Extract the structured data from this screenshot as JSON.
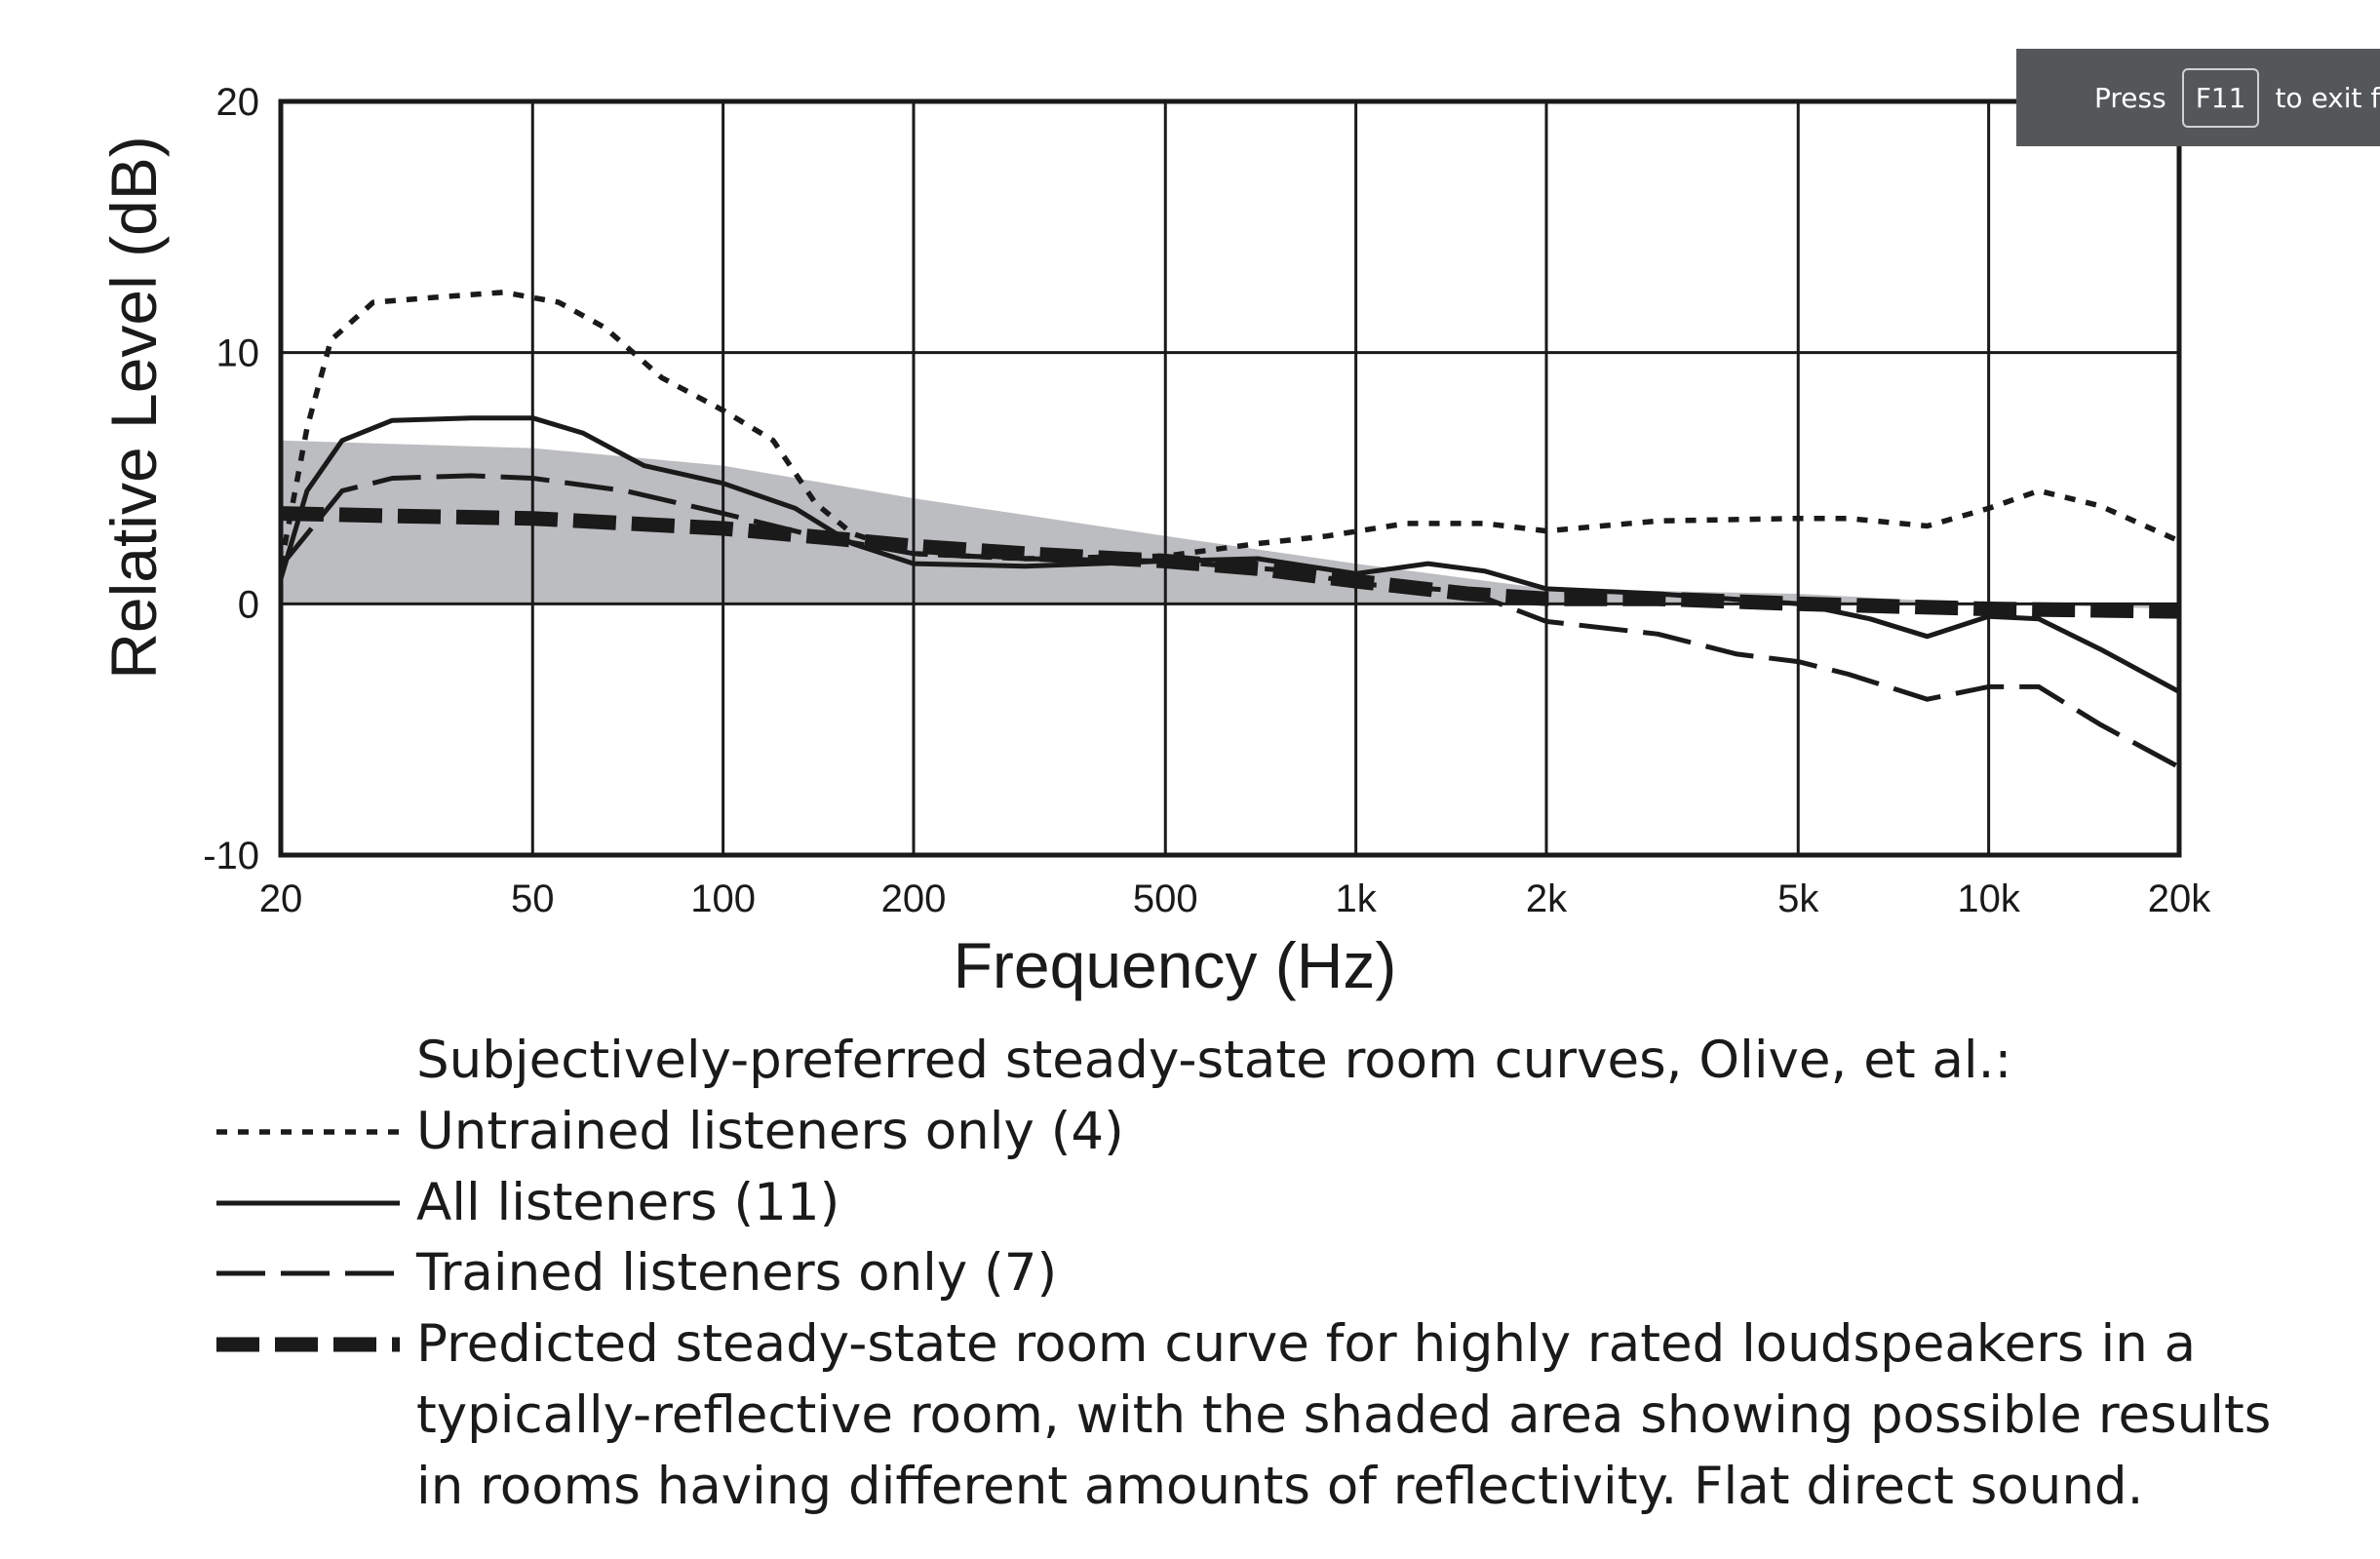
{
  "chart_data": {
    "type": "line",
    "xlabel": "Frequency (Hz)",
    "ylabel": "Relative Level (dB)",
    "x_scale": "log",
    "xlim": [
      20,
      20000
    ],
    "ylim": [
      -10,
      20
    ],
    "grid": true,
    "x_ticks": [
      {
        "value": 20,
        "label": "20"
      },
      {
        "value": 50,
        "label": "50"
      },
      {
        "value": 100,
        "label": "100"
      },
      {
        "value": 200,
        "label": "200"
      },
      {
        "value": 500,
        "label": "500"
      },
      {
        "value": 1000,
        "label": "1k"
      },
      {
        "value": 2000,
        "label": "2k"
      },
      {
        "value": 5000,
        "label": "5k"
      },
      {
        "value": 10000,
        "label": "10k"
      },
      {
        "value": 20000,
        "label": "20k"
      }
    ],
    "y_ticks": [
      {
        "value": 20,
        "label": "20"
      },
      {
        "value": 10,
        "label": "10"
      },
      {
        "value": 0,
        "label": "0"
      },
      {
        "value": -10,
        "label": "-10"
      }
    ],
    "shaded_area": {
      "color": "#bcbdc0",
      "lower": [
        [
          20,
          0
        ],
        [
          20000,
          0
        ]
      ],
      "upper": [
        [
          20,
          6.5
        ],
        [
          50,
          6.2
        ],
        [
          100,
          5.5
        ],
        [
          200,
          4.2
        ],
        [
          500,
          2.7
        ],
        [
          1000,
          1.6
        ],
        [
          2000,
          0.6
        ],
        [
          5000,
          0.4
        ],
        [
          10000,
          0.0
        ],
        [
          20000,
          -0.2
        ]
      ]
    },
    "series": [
      {
        "style": "dotted",
        "points": [
          [
            20,
            1.5
          ],
          [
            22,
            7
          ],
          [
            24,
            10.5
          ],
          [
            28,
            12
          ],
          [
            35,
            12.2
          ],
          [
            45,
            12.4
          ],
          [
            55,
            12
          ],
          [
            65,
            11
          ],
          [
            80,
            9
          ],
          [
            100,
            7.7
          ],
          [
            120,
            6.5
          ],
          [
            140,
            4
          ],
          [
            160,
            2.8
          ],
          [
            200,
            2.0
          ],
          [
            300,
            1.8
          ],
          [
            500,
            1.9
          ],
          [
            700,
            2.4
          ],
          [
            900,
            2.7
          ],
          [
            1200,
            3.2
          ],
          [
            1600,
            3.2
          ],
          [
            2000,
            2.9
          ],
          [
            3000,
            3.3
          ],
          [
            5000,
            3.4
          ],
          [
            6000,
            3.4
          ],
          [
            8000,
            3.1
          ],
          [
            10000,
            3.8
          ],
          [
            12000,
            4.5
          ],
          [
            15000,
            3.9
          ],
          [
            20000,
            2.5
          ]
        ]
      },
      {
        "style": "solid",
        "points": [
          [
            20,
            1.0
          ],
          [
            22,
            4.5
          ],
          [
            25,
            6.5
          ],
          [
            30,
            7.3
          ],
          [
            40,
            7.4
          ],
          [
            50,
            7.4
          ],
          [
            60,
            6.8
          ],
          [
            75,
            5.5
          ],
          [
            100,
            4.8
          ],
          [
            130,
            3.8
          ],
          [
            160,
            2.4
          ],
          [
            200,
            1.6
          ],
          [
            300,
            1.5
          ],
          [
            500,
            1.7
          ],
          [
            700,
            1.8
          ],
          [
            1000,
            1.2
          ],
          [
            1300,
            1.6
          ],
          [
            1600,
            1.3
          ],
          [
            2000,
            0.6
          ],
          [
            3000,
            0.4
          ],
          [
            5000,
            0.0
          ],
          [
            6500,
            -0.6
          ],
          [
            8000,
            -1.3
          ],
          [
            10000,
            -0.5
          ],
          [
            12000,
            -0.6
          ],
          [
            15000,
            -1.8
          ],
          [
            20000,
            -3.5
          ]
        ]
      },
      {
        "style": "long-dash",
        "points": [
          [
            20,
            1.5
          ],
          [
            25,
            4.5
          ],
          [
            30,
            5.0
          ],
          [
            40,
            5.1
          ],
          [
            50,
            5.0
          ],
          [
            70,
            4.5
          ],
          [
            100,
            3.6
          ],
          [
            140,
            2.7
          ],
          [
            200,
            2.0
          ],
          [
            300,
            1.8
          ],
          [
            500,
            1.7
          ],
          [
            800,
            1.3
          ],
          [
            1000,
            0.8
          ],
          [
            1500,
            0.5
          ],
          [
            2000,
            -0.7
          ],
          [
            3000,
            -1.2
          ],
          [
            4000,
            -2.0
          ],
          [
            5000,
            -2.3
          ],
          [
            6000,
            -2.8
          ],
          [
            8000,
            -3.8
          ],
          [
            10000,
            -3.3
          ],
          [
            12000,
            -3.3
          ],
          [
            15000,
            -4.8
          ],
          [
            20000,
            -6.5
          ]
        ]
      },
      {
        "style": "bold-dash",
        "points": [
          [
            20,
            3.6
          ],
          [
            30,
            3.5
          ],
          [
            50,
            3.4
          ],
          [
            100,
            3.0
          ],
          [
            150,
            2.6
          ],
          [
            200,
            2.3
          ],
          [
            300,
            2.0
          ],
          [
            500,
            1.7
          ],
          [
            700,
            1.4
          ],
          [
            1000,
            0.9
          ],
          [
            1500,
            0.4
          ],
          [
            2000,
            0.2
          ],
          [
            3000,
            0.2
          ],
          [
            5000,
            0.0
          ],
          [
            10000,
            -0.2
          ],
          [
            20000,
            -0.3
          ]
        ]
      }
    ],
    "legend": {
      "placement": "below",
      "title": "Subjectively-preferred steady-state room curves, Olive, et al.:",
      "entries": [
        {
          "style": "dotted",
          "label": "Untrained listeners only (4)"
        },
        {
          "style": "solid",
          "label": "All listeners (11)"
        },
        {
          "style": "long-dash",
          "label": "Trained listeners only (7)"
        },
        {
          "style": "bold-dash",
          "label": "Predicted steady-state room curve for highly rated loudspeakers in a",
          "continuation": [
            "typically-reflective room, with the shaded area showing possible results",
            "in rooms having different amounts of reflectivity.  Flat direct sound."
          ]
        }
      ]
    }
  },
  "overlay": {
    "press": "Press",
    "key": "F11",
    "message": "to exit full screen"
  }
}
